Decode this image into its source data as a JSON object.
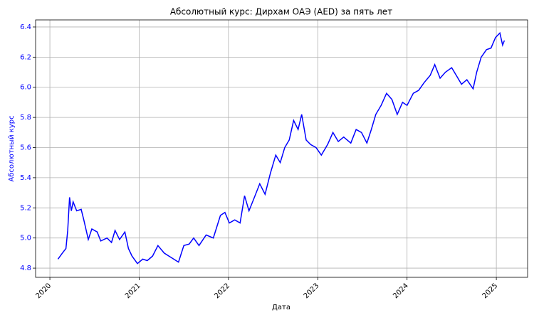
{
  "chart_data": {
    "type": "line",
    "title": "Абсолютный курс: Дирхам ОАЭ (AED) за пять лет",
    "xlabel": "Дата",
    "ylabel": "Абсолютный курс",
    "color": "#0000ff",
    "ylabel_color": "#0000ff",
    "grid": true,
    "x": [
      2020.09,
      2020.14,
      2020.18,
      2020.2,
      2020.22,
      2020.24,
      2020.26,
      2020.3,
      2020.35,
      2020.38,
      2020.43,
      2020.47,
      2020.53,
      2020.57,
      2020.64,
      2020.69,
      2020.73,
      2020.78,
      2020.84,
      2020.88,
      2020.92,
      2020.98,
      2021.04,
      2021.09,
      2021.15,
      2021.21,
      2021.28,
      2021.36,
      2021.44,
      2021.5,
      2021.56,
      2021.61,
      2021.67,
      2021.75,
      2021.83,
      2021.91,
      2021.96,
      2022.01,
      2022.07,
      2022.13,
      2022.18,
      2022.23,
      2022.29,
      2022.35,
      2022.41,
      2022.47,
      2022.53,
      2022.58,
      2022.63,
      2022.68,
      2022.73,
      2022.78,
      2022.82,
      2022.87,
      2022.92,
      2022.98,
      2023.04,
      2023.11,
      2023.17,
      2023.23,
      2023.29,
      2023.37,
      2023.43,
      2023.49,
      2023.55,
      2023.6,
      2023.65,
      2023.71,
      2023.77,
      2023.83,
      2023.89,
      2023.95,
      2024.0,
      2024.07,
      2024.13,
      2024.19,
      2024.26,
      2024.31,
      2024.37,
      2024.43,
      2024.5,
      2024.55,
      2024.61,
      2024.67,
      2024.74,
      2024.78,
      2024.83,
      2024.89,
      2024.94,
      2024.99,
      2025.04,
      2025.07,
      2025.09
    ],
    "values": [
      4.86,
      4.9,
      4.93,
      5.05,
      5.27,
      5.18,
      5.24,
      5.18,
      5.19,
      5.12,
      4.99,
      5.06,
      5.04,
      4.98,
      5.0,
      4.97,
      5.05,
      4.99,
      5.04,
      4.93,
      4.88,
      4.83,
      4.86,
      4.85,
      4.88,
      4.95,
      4.9,
      4.87,
      4.84,
      4.95,
      4.96,
      5.0,
      4.95,
      5.02,
      5.0,
      5.15,
      5.17,
      5.1,
      5.12,
      5.1,
      5.28,
      5.18,
      5.27,
      5.36,
      5.29,
      5.43,
      5.55,
      5.5,
      5.6,
      5.65,
      5.78,
      5.72,
      5.82,
      5.65,
      5.62,
      5.6,
      5.55,
      5.62,
      5.7,
      5.64,
      5.67,
      5.63,
      5.72,
      5.7,
      5.63,
      5.72,
      5.82,
      5.88,
      5.96,
      5.92,
      5.82,
      5.9,
      5.88,
      5.96,
      5.98,
      6.03,
      6.08,
      6.15,
      6.06,
      6.1,
      6.13,
      6.08,
      6.02,
      6.05,
      5.99,
      6.1,
      6.2,
      6.25,
      6.26,
      6.33,
      6.36,
      6.28,
      6.31
    ],
    "xlim": [
      2019.84,
      2025.35
    ],
    "xticks": [
      2020,
      2021,
      2022,
      2023,
      2024,
      2025
    ],
    "ylim": [
      4.739,
      6.447
    ],
    "yticks": [
      4.8,
      {
        "value": 5,
        "label": "5.0"
      },
      5.2,
      5.4,
      5.6,
      5.8,
      {
        "value": 6,
        "label": "6.0"
      },
      6.2,
      6.4
    ]
  }
}
